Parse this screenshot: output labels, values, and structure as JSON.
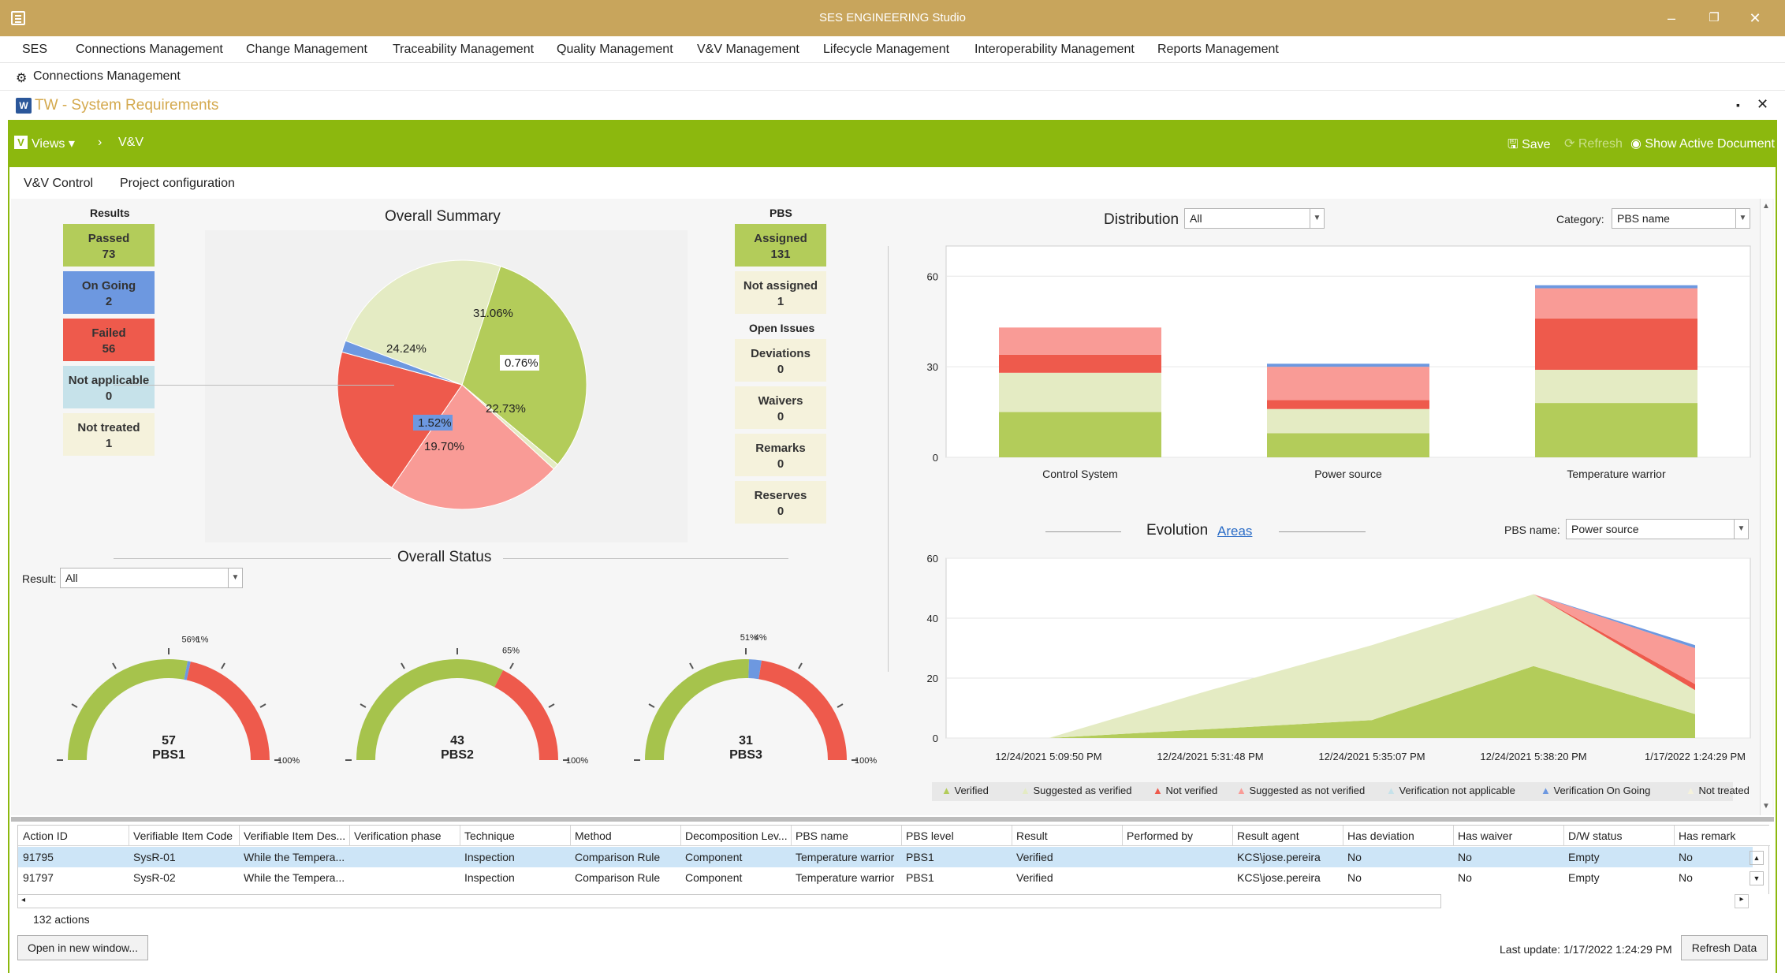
{
  "window": {
    "title": "SES ENGINEERING Studio",
    "minimize": "–",
    "restore": "❐",
    "close": "✕"
  },
  "menu": [
    "SES",
    "Connections Management",
    "Change Management",
    "Traceability Management",
    "Quality Management",
    "V&V Management",
    "Lifecycle Management",
    "Interoperability Management",
    "Reports Management"
  ],
  "breadcrumb": "Connections Management",
  "document_tab": {
    "title": "TW - System Requirements",
    "pin": "▪",
    "close": "✕"
  },
  "toolbar": {
    "views": "Views",
    "arrow": "›",
    "vv": "V&V",
    "save": "Save",
    "refresh": "Refresh",
    "show_active": "Show Active Document"
  },
  "subtabs": [
    "V&V Control",
    "Project configuration"
  ],
  "results": {
    "heading": "Results",
    "tiles": [
      {
        "label": "Passed",
        "count": "73",
        "color": "#b3cc5a"
      },
      {
        "label": "On Going",
        "count": "2",
        "color": "#6d98e0"
      },
      {
        "label": "Failed",
        "count": "56",
        "color": "#ee5a4c"
      },
      {
        "label": "Not applicable",
        "count": "0",
        "color": "#c6e2ea"
      },
      {
        "label": "Not treated",
        "count": "1",
        "color": "#f5f2dc"
      }
    ]
  },
  "overall_summary": {
    "title": "Overall Summary",
    "slices": [
      {
        "label": "31.06%",
        "value": 31.06,
        "color": "#b3cc5a"
      },
      {
        "label": "0.76%",
        "value": 0.76,
        "color": "#e4ebc3"
      },
      {
        "label": "22.73%",
        "value": 22.73,
        "color": "#f99b96"
      },
      {
        "label": "19.70%",
        "value": 19.7,
        "color": "#ee5a4c"
      },
      {
        "label": "1.52%",
        "value": 1.52,
        "color": "#6d98e0"
      },
      {
        "label": "24.24%",
        "value": 24.24,
        "color": "#e4ebc3"
      }
    ]
  },
  "pbs": {
    "heading": "PBS",
    "tiles": [
      {
        "label": "Assigned",
        "count": "131",
        "color": "#b3cc5a"
      },
      {
        "label": "Not assigned",
        "count": "1",
        "color": "#f5f2dc"
      }
    ],
    "open_issues_heading": "Open Issues",
    "issues": [
      {
        "label": "Deviations",
        "count": "0",
        "color": "#f5f2dc"
      },
      {
        "label": "Waivers",
        "count": "0",
        "color": "#f5f2dc"
      },
      {
        "label": "Remarks",
        "count": "0",
        "color": "#f5f2dc"
      },
      {
        "label": "Reserves",
        "count": "0",
        "color": "#f5f2dc"
      }
    ]
  },
  "overall_status": {
    "title": "Overall Status",
    "result_label": "Result:",
    "result_value": "All",
    "gauges": [
      {
        "count": "57",
        "name": "PBS1",
        "top_label": "56%",
        "top_label2": "1%",
        "max_label": "100%",
        "green": 0.56,
        "blue": 0.01
      },
      {
        "count": "43",
        "name": "PBS2",
        "top_label": "65%",
        "max_label": "100%",
        "green": 0.65,
        "blue": 0.0
      },
      {
        "count": "31",
        "name": "PBS3",
        "top_label": "51%",
        "top_label2": "4%",
        "max_label": "100%",
        "green": 0.51,
        "blue": 0.04
      }
    ]
  },
  "distribution": {
    "title": "Distribution",
    "filter_value": "All",
    "category_label": "Category:",
    "category_value": "PBS name"
  },
  "evolution": {
    "title": "Evolution",
    "link": "Areas",
    "pbs_label": "PBS name:",
    "pbs_value": "Power source"
  },
  "chart_data": [
    {
      "type": "bar",
      "stacked": true,
      "categories": [
        "Control System",
        "Power source",
        "Temperature warrior"
      ],
      "ylim": [
        0,
        70
      ],
      "yticks": [
        "0",
        "30",
        "60"
      ],
      "series": [
        {
          "color": "#b3cc5a",
          "values": [
            15,
            8,
            18
          ]
        },
        {
          "color": "#e4ebc3",
          "values": [
            13,
            8,
            11
          ]
        },
        {
          "color": "#ee5a4c",
          "values": [
            6,
            3,
            17
          ]
        },
        {
          "color": "#f99b96",
          "values": [
            9,
            11,
            10
          ]
        },
        {
          "color": "#6d98e0",
          "values": [
            0,
            1,
            1
          ]
        }
      ]
    },
    {
      "type": "area",
      "stacked": true,
      "x": [
        "12/24/2021 5:09:50 PM",
        "12/24/2021 5:31:48 PM",
        "12/24/2021 5:35:07 PM",
        "12/24/2021 5:38:20 PM",
        "1/17/2022 1:24:29 PM"
      ],
      "ylim": [
        0,
        60
      ],
      "yticks": [
        "0",
        "20",
        "40",
        "60"
      ],
      "series": [
        {
          "name": "Verified",
          "color": "#b3cc5a",
          "values": [
            0,
            3,
            6,
            24,
            8
          ]
        },
        {
          "name": "Suggested as verified",
          "color": "#e4ebc3",
          "values": [
            0,
            13,
            25,
            24,
            8
          ]
        },
        {
          "name": "Not verified",
          "color": "#ee5a4c",
          "values": [
            0,
            0,
            0,
            0,
            2
          ]
        },
        {
          "name": "Suggested as not verified",
          "color": "#f99b96",
          "values": [
            0,
            0,
            0,
            0,
            12
          ]
        },
        {
          "name": "Verification not applicable",
          "color": "#c6e2ea",
          "values": [
            0,
            0,
            0,
            0,
            0
          ]
        },
        {
          "name": "Verification On Going",
          "color": "#6d98e0",
          "values": [
            0,
            0,
            0,
            0,
            1
          ]
        },
        {
          "name": "Not treated",
          "color": "#f5f2dc",
          "values": [
            0,
            0,
            0,
            0,
            0
          ]
        }
      ]
    }
  ],
  "table": {
    "columns": [
      "Action ID",
      "Verifiable Item Code",
      "Verifiable Item Des...",
      "Verification phase",
      "Technique",
      "Method",
      "Decomposition Lev...",
      "PBS name",
      "PBS level",
      "Result",
      "Performed by",
      "Result agent",
      "Has deviation",
      "Has waiver",
      "D/W status",
      "Has remark"
    ],
    "rows": [
      [
        "91795",
        "SysR-01",
        "While the Tempera...",
        "",
        "Inspection",
        "Comparison Rule",
        "Component",
        "Temperature warrior",
        "PBS1",
        "Verified",
        "",
        "KCS\\jose.pereira",
        "No",
        "No",
        "Empty",
        "No"
      ],
      [
        "91797",
        "SysR-02",
        "While the Tempera...",
        "",
        "Inspection",
        "Comparison Rule",
        "Component",
        "Temperature warrior",
        "PBS1",
        "Verified",
        "",
        "KCS\\jose.pereira",
        "No",
        "No",
        "Empty",
        "No"
      ]
    ],
    "count_text": "132 actions"
  },
  "footer": {
    "open_window": "Open in new window...",
    "last_update": "Last update: 1/17/2022 1:24:29 PM",
    "refresh_data": "Refresh Data"
  }
}
